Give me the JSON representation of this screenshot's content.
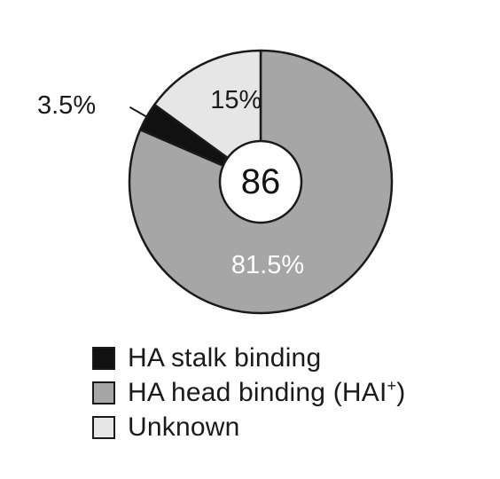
{
  "chart_data": {
    "type": "pie",
    "style": "donut",
    "center_label": "86",
    "slices": [
      {
        "label": "HA head binding (HAI",
        "label_superscript": "+",
        "label_suffix": ")",
        "value": 81.5,
        "value_label": "81.5%",
        "color": "#a6a6a6"
      },
      {
        "label": "HA stalk binding",
        "value": 3.5,
        "value_label": "3.5%",
        "color": "#111111"
      },
      {
        "label": "Unknown",
        "value": 15,
        "value_label": "15%",
        "color": "#e6e6e6"
      }
    ],
    "legend_order": [
      1,
      0,
      2
    ],
    "legend_position": "bottom-left",
    "outline_color": "#1a1a1a"
  }
}
